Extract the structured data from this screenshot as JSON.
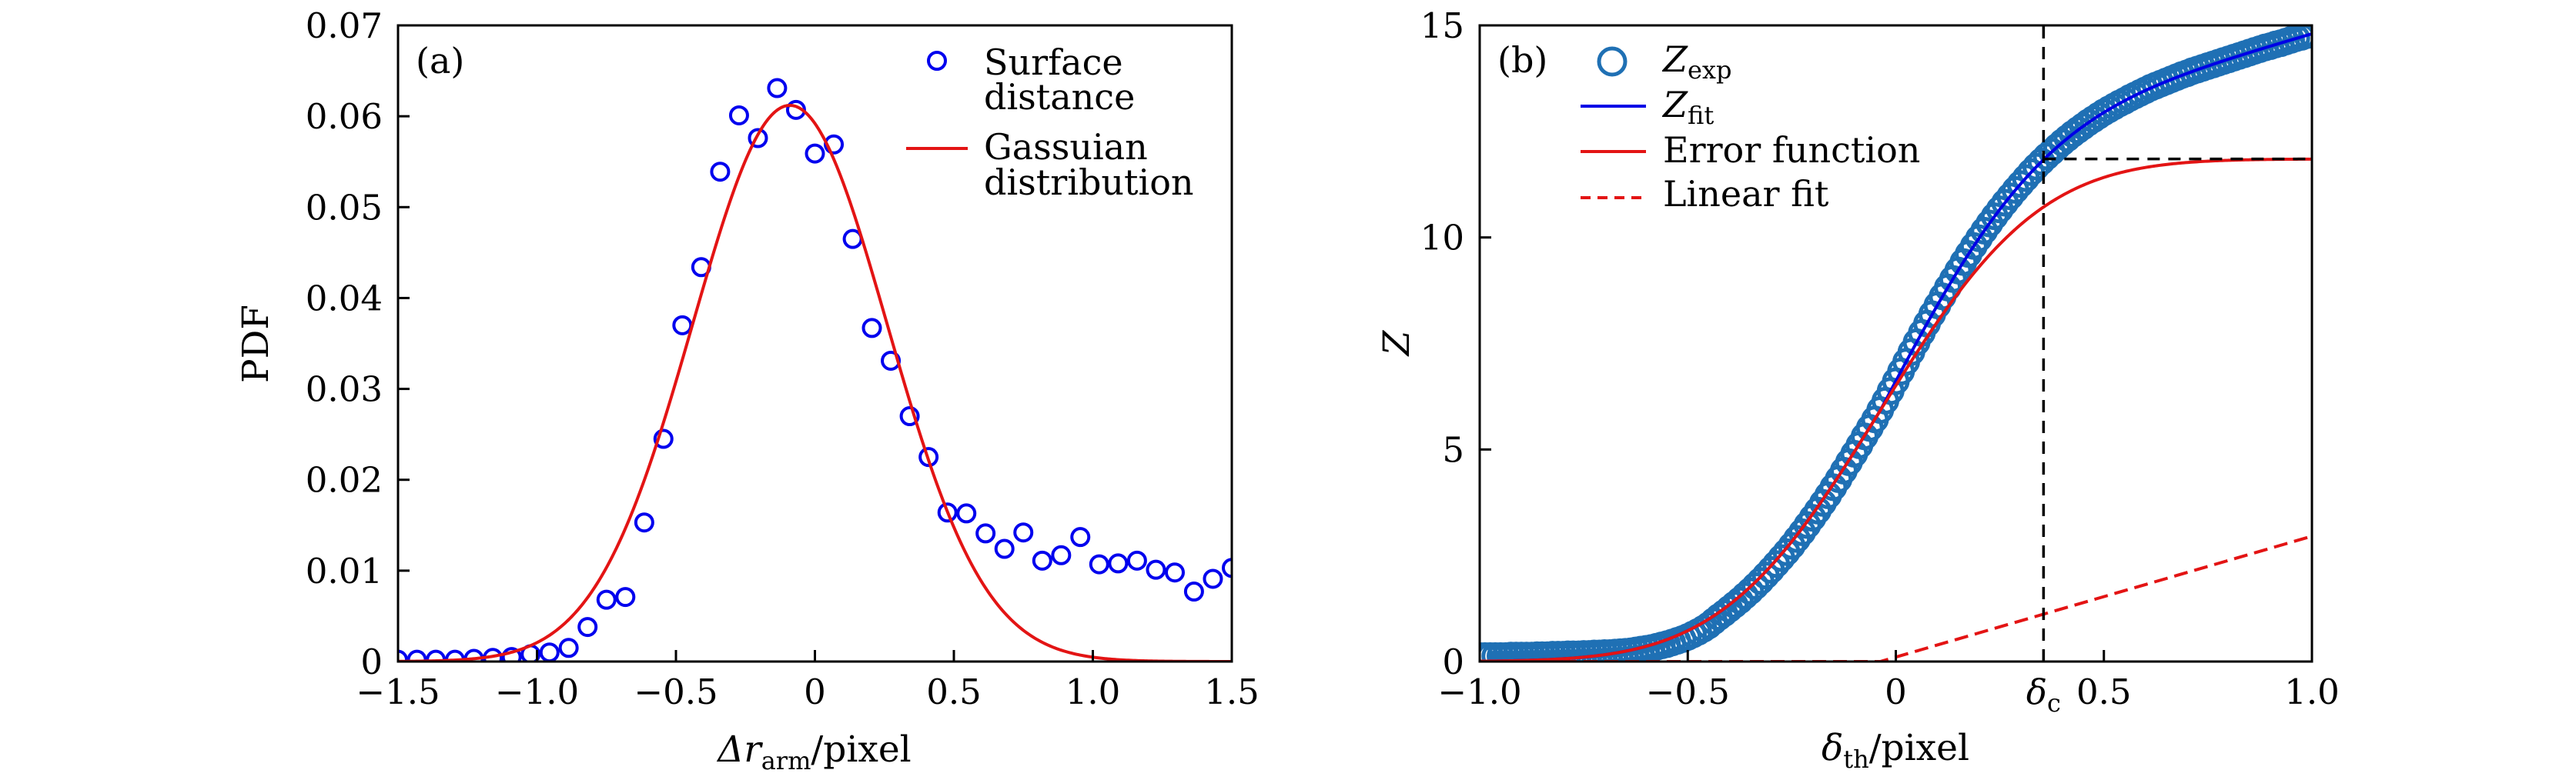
{
  "figure": {
    "background": "#ffffff",
    "axes_color": "#000000"
  },
  "chart_data": [
    {
      "id": "a",
      "type": "scatter",
      "panel_label": "(a)",
      "title": "",
      "xlabel": {
        "symbol": "Δr",
        "subscript": "arm",
        "suffix": "/pixel"
      },
      "ylabel": "PDF",
      "xlim": [
        -1.5,
        1.5
      ],
      "ylim": [
        0,
        0.07
      ],
      "grid": false,
      "xticks": [
        -1.5,
        -1.0,
        -0.5,
        0,
        0.5,
        1.0,
        1.5
      ],
      "xtick_labels": [
        {
          "at": -1.5,
          "text": "−1.5"
        },
        {
          "at": -1.0,
          "text": "−1.0"
        },
        {
          "at": -0.5,
          "text": "−0.5"
        },
        {
          "at": 0,
          "text": "0"
        },
        {
          "at": 0.5,
          "text": "0.5"
        },
        {
          "at": 1.0,
          "text": "1.0"
        },
        {
          "at": 1.5,
          "text": "1.5"
        }
      ],
      "yticks": [
        0,
        0.01,
        0.02,
        0.03,
        0.04,
        0.05,
        0.06,
        0.07
      ],
      "ytick_labels": [
        {
          "at": 0,
          "text": "0"
        },
        {
          "at": 0.01,
          "text": "0.01"
        },
        {
          "at": 0.02,
          "text": "0.02"
        },
        {
          "at": 0.03,
          "text": "0.03"
        },
        {
          "at": 0.04,
          "text": "0.04"
        },
        {
          "at": 0.05,
          "text": "0.05"
        },
        {
          "at": 0.06,
          "text": "0.06"
        },
        {
          "at": 0.07,
          "text": "0.07"
        }
      ],
      "legend": {
        "placement": "top-right",
        "entries": [
          {
            "series": "Surface distance",
            "symbol": "open-circle",
            "lines": [
              "Surface",
              "distance"
            ]
          },
          {
            "series": "Gassuian distribution",
            "symbol": "solid-line",
            "lines": [
              "Gassuian",
              "distribution"
            ]
          }
        ]
      },
      "series": [
        {
          "name": "Surface distance",
          "kind": "scatter",
          "marker": "open-circle",
          "color": "#0000ee",
          "x": [
            -1.5,
            -1.432,
            -1.364,
            -1.295,
            -1.227,
            -1.159,
            -1.091,
            -1.023,
            -0.955,
            -0.886,
            -0.818,
            -0.75,
            -0.682,
            -0.614,
            -0.545,
            -0.477,
            -0.409,
            -0.341,
            -0.273,
            -0.205,
            -0.136,
            -0.068,
            0,
            0.068,
            0.136,
            0.205,
            0.273,
            0.341,
            0.409,
            0.477,
            0.545,
            0.614,
            0.682,
            0.75,
            0.818,
            0.886,
            0.955,
            1.023,
            1.091,
            1.159,
            1.227,
            1.295,
            1.364,
            1.432,
            1.5
          ],
          "y": [
            0.0002,
            0.0002,
            0.0002,
            0.0002,
            0.0003,
            0.0004,
            0.0005,
            0.0008,
            0.001,
            0.0015,
            0.0038,
            0.0068,
            0.0071,
            0.0153,
            0.0245,
            0.037,
            0.0434,
            0.0539,
            0.0601,
            0.0576,
            0.0631,
            0.0607,
            0.0559,
            0.0569,
            0.0465,
            0.0367,
            0.0331,
            0.027,
            0.0225,
            0.0164,
            0.0163,
            0.0141,
            0.0124,
            0.0142,
            0.0111,
            0.0117,
            0.0137,
            0.0107,
            0.0108,
            0.0111,
            0.0101,
            0.0098,
            0.0077,
            0.0091,
            0.0103
          ]
        },
        {
          "name": "Gassuian distribution",
          "kind": "curve",
          "model": "gaussian",
          "color": "#e31414",
          "params": {
            "amplitude": 0.0612,
            "mu": -0.09,
            "sigma": 0.35
          }
        }
      ]
    },
    {
      "id": "b",
      "type": "scatter",
      "panel_label": "(b)",
      "title": "",
      "xlabel": {
        "symbol": "δ",
        "subscript": "th",
        "suffix": "/pixel"
      },
      "ylabel": "Z",
      "xlim": [
        -1.0,
        1.0
      ],
      "ylim": [
        0,
        15
      ],
      "grid": false,
      "delta_c": 0.355,
      "xticks": [
        -1.0,
        -0.5,
        0,
        0.5,
        1.0
      ],
      "xtick_labels": [
        {
          "at": -1.0,
          "text": "−1.0"
        },
        {
          "at": -0.5,
          "text": "−0.5"
        },
        {
          "at": 0,
          "text": "0"
        },
        {
          "at": 0.355,
          "text": "δ",
          "sub": "c"
        },
        {
          "at": 0.5,
          "text": "0.5"
        },
        {
          "at": 1.0,
          "text": "1.0"
        }
      ],
      "yticks": [
        0,
        5,
        10,
        15
      ],
      "ytick_labels": [
        {
          "at": 0,
          "text": "0"
        },
        {
          "at": 5,
          "text": "5"
        },
        {
          "at": 10,
          "text": "10"
        },
        {
          "at": 15,
          "text": "15"
        }
      ],
      "legend": {
        "placement": "top-left",
        "entries": [
          {
            "series": "Z_exp",
            "symbol": "open-circle",
            "main": "Z",
            "sub": "exp"
          },
          {
            "series": "Z_fit",
            "symbol": "solid-line",
            "main": "Z",
            "sub": "fit"
          },
          {
            "series": "Error function",
            "symbol": "solid-line",
            "main": "Error function",
            "sub": ""
          },
          {
            "series": "Linear fit",
            "symbol": "dashed-line",
            "main": "Linear fit",
            "sub": ""
          }
        ]
      },
      "series": [
        {
          "name": "Z_exp",
          "kind": "scatter",
          "marker": "open-circle",
          "color": "#1f70b4",
          "x": [
            -1,
            -0.9875,
            -0.975,
            -0.9625,
            -0.95,
            -0.9375,
            -0.925,
            -0.9125,
            -0.9,
            -0.8875,
            -0.875,
            -0.8625,
            -0.85,
            -0.8375,
            -0.825,
            -0.8125,
            -0.8,
            -0.7875,
            -0.775,
            -0.7625,
            -0.75,
            -0.7375,
            -0.725,
            -0.7125,
            -0.7,
            -0.6875,
            -0.675,
            -0.6625,
            -0.65,
            -0.6375,
            -0.625,
            -0.6125,
            -0.6,
            -0.5875,
            -0.575,
            -0.5625,
            -0.55,
            -0.5375,
            -0.525,
            -0.5125,
            -0.5,
            -0.4875,
            -0.475,
            -0.4625,
            -0.45,
            -0.4375,
            -0.425,
            -0.4125,
            -0.4,
            -0.3875,
            -0.375,
            -0.3625,
            -0.35,
            -0.3375,
            -0.325,
            -0.3125,
            -0.3,
            -0.2875,
            -0.275,
            -0.2625,
            -0.25,
            -0.2375,
            -0.225,
            -0.2125,
            -0.2,
            -0.1875,
            -0.175,
            -0.1625,
            -0.15,
            -0.1375,
            -0.125,
            -0.1125,
            -0.1,
            -0.0875,
            -0.075,
            -0.0625,
            -0.05,
            -0.0375,
            -0.025,
            -0.0125,
            0,
            0.0125,
            0.025,
            0.0375,
            0.05,
            0.0625,
            0.075,
            0.0875,
            0.1,
            0.1125,
            0.125,
            0.1375,
            0.15,
            0.1625,
            0.175,
            0.1875,
            0.2,
            0.2125,
            0.225,
            0.2375,
            0.25,
            0.2625,
            0.275,
            0.2875,
            0.3,
            0.3125,
            0.325,
            0.3375,
            0.35,
            0.3625,
            0.375,
            0.3875,
            0.4,
            0.4125,
            0.425,
            0.4375,
            0.45,
            0.4625,
            0.475,
            0.4875,
            0.5,
            0.5125,
            0.525,
            0.5375,
            0.55,
            0.5625,
            0.575,
            0.5875,
            0.6,
            0.6125,
            0.625,
            0.6375,
            0.65,
            0.6625,
            0.675,
            0.6875,
            0.7,
            0.7125,
            0.725,
            0.7375,
            0.75,
            0.7625,
            0.775,
            0.7875,
            0.8,
            0.8125,
            0.825,
            0.8375,
            0.85,
            0.8625,
            0.875,
            0.8875,
            0.9,
            0.9125,
            0.925,
            0.9375,
            0.95,
            0.9625,
            0.975,
            0.9875,
            1
          ],
          "y": [
            0.13,
            0.13,
            0.13,
            0.13,
            0.13,
            0.13,
            0.14,
            0.14,
            0.14,
            0.14,
            0.14,
            0.15,
            0.15,
            0.15,
            0.16,
            0.16,
            0.16,
            0.17,
            0.17,
            0.17,
            0.18,
            0.18,
            0.19,
            0.19,
            0.2,
            0.2,
            0.21,
            0.22,
            0.23,
            0.24,
            0.26,
            0.28,
            0.3,
            0.32,
            0.35,
            0.38,
            0.41,
            0.45,
            0.49,
            0.53,
            0.58,
            0.64,
            0.7,
            0.77,
            0.85,
            0.95,
            1.05,
            1.14,
            1.24,
            1.34,
            1.44,
            1.55,
            1.66,
            1.78,
            1.9,
            2.03,
            2.16,
            2.3,
            2.44,
            2.58,
            2.73,
            2.89,
            3.05,
            3.22,
            3.39,
            3.56,
            3.74,
            3.92,
            4.11,
            4.3,
            4.5,
            4.7,
            4.9,
            5.1,
            5.31,
            5.51,
            5.71,
            5.93,
            6.15,
            6.38,
            6.61,
            6.84,
            7.07,
            7.3,
            7.53,
            7.75,
            7.97,
            8.19,
            8.4,
            8.61,
            8.82,
            9.02,
            9.22,
            9.42,
            9.61,
            9.8,
            9.98,
            10.16,
            10.33,
            10.5,
            10.66,
            10.82,
            10.97,
            11.12,
            11.26,
            11.4,
            11.54,
            11.67,
            11.79,
            11.91,
            12.02,
            12.13,
            12.24,
            12.34,
            12.44,
            12.53,
            12.62,
            12.71,
            12.79,
            12.87,
            12.95,
            13.02,
            13.09,
            13.16,
            13.22,
            13.29,
            13.35,
            13.41,
            13.47,
            13.53,
            13.58,
            13.63,
            13.68,
            13.73,
            13.78,
            13.83,
            13.87,
            13.92,
            13.96,
            14.0,
            14.04,
            14.08,
            14.12,
            14.16,
            14.2,
            14.24,
            14.28,
            14.32,
            14.36,
            14.4,
            14.44,
            14.48,
            14.51,
            14.55,
            14.58,
            14.62,
            14.66,
            14.7,
            14.73,
            14.77,
            14.8
          ]
        },
        {
          "name": "Z_fit",
          "kind": "curve",
          "model": "error_function_plus_linear",
          "color": "#0000e6",
          "params": {
            "amplitude": 11.85,
            "mu": -0.037,
            "sigma": 0.3,
            "slope": 2.85
          }
        },
        {
          "name": "Error function",
          "kind": "curve",
          "model": "error_function",
          "color": "#e31414",
          "params": {
            "amplitude": 11.85,
            "mu": -0.037,
            "sigma": 0.3
          }
        },
        {
          "name": "Linear fit",
          "kind": "curve",
          "model": "linear_ramp",
          "dashed": true,
          "color": "#e31414",
          "params": {
            "slope": 2.85,
            "x0": -0.037
          }
        }
      ],
      "reference_lines": [
        {
          "name": "delta-c",
          "orientation": "vertical",
          "x": 0.355,
          "y_range": [
            0,
            15
          ],
          "style": "dashed",
          "color": "#000000"
        },
        {
          "name": "saturation-level",
          "orientation": "horizontal",
          "y": 11.85,
          "x_range": [
            0.355,
            1.0
          ],
          "style": "dashed",
          "color": "#000000"
        }
      ]
    }
  ]
}
